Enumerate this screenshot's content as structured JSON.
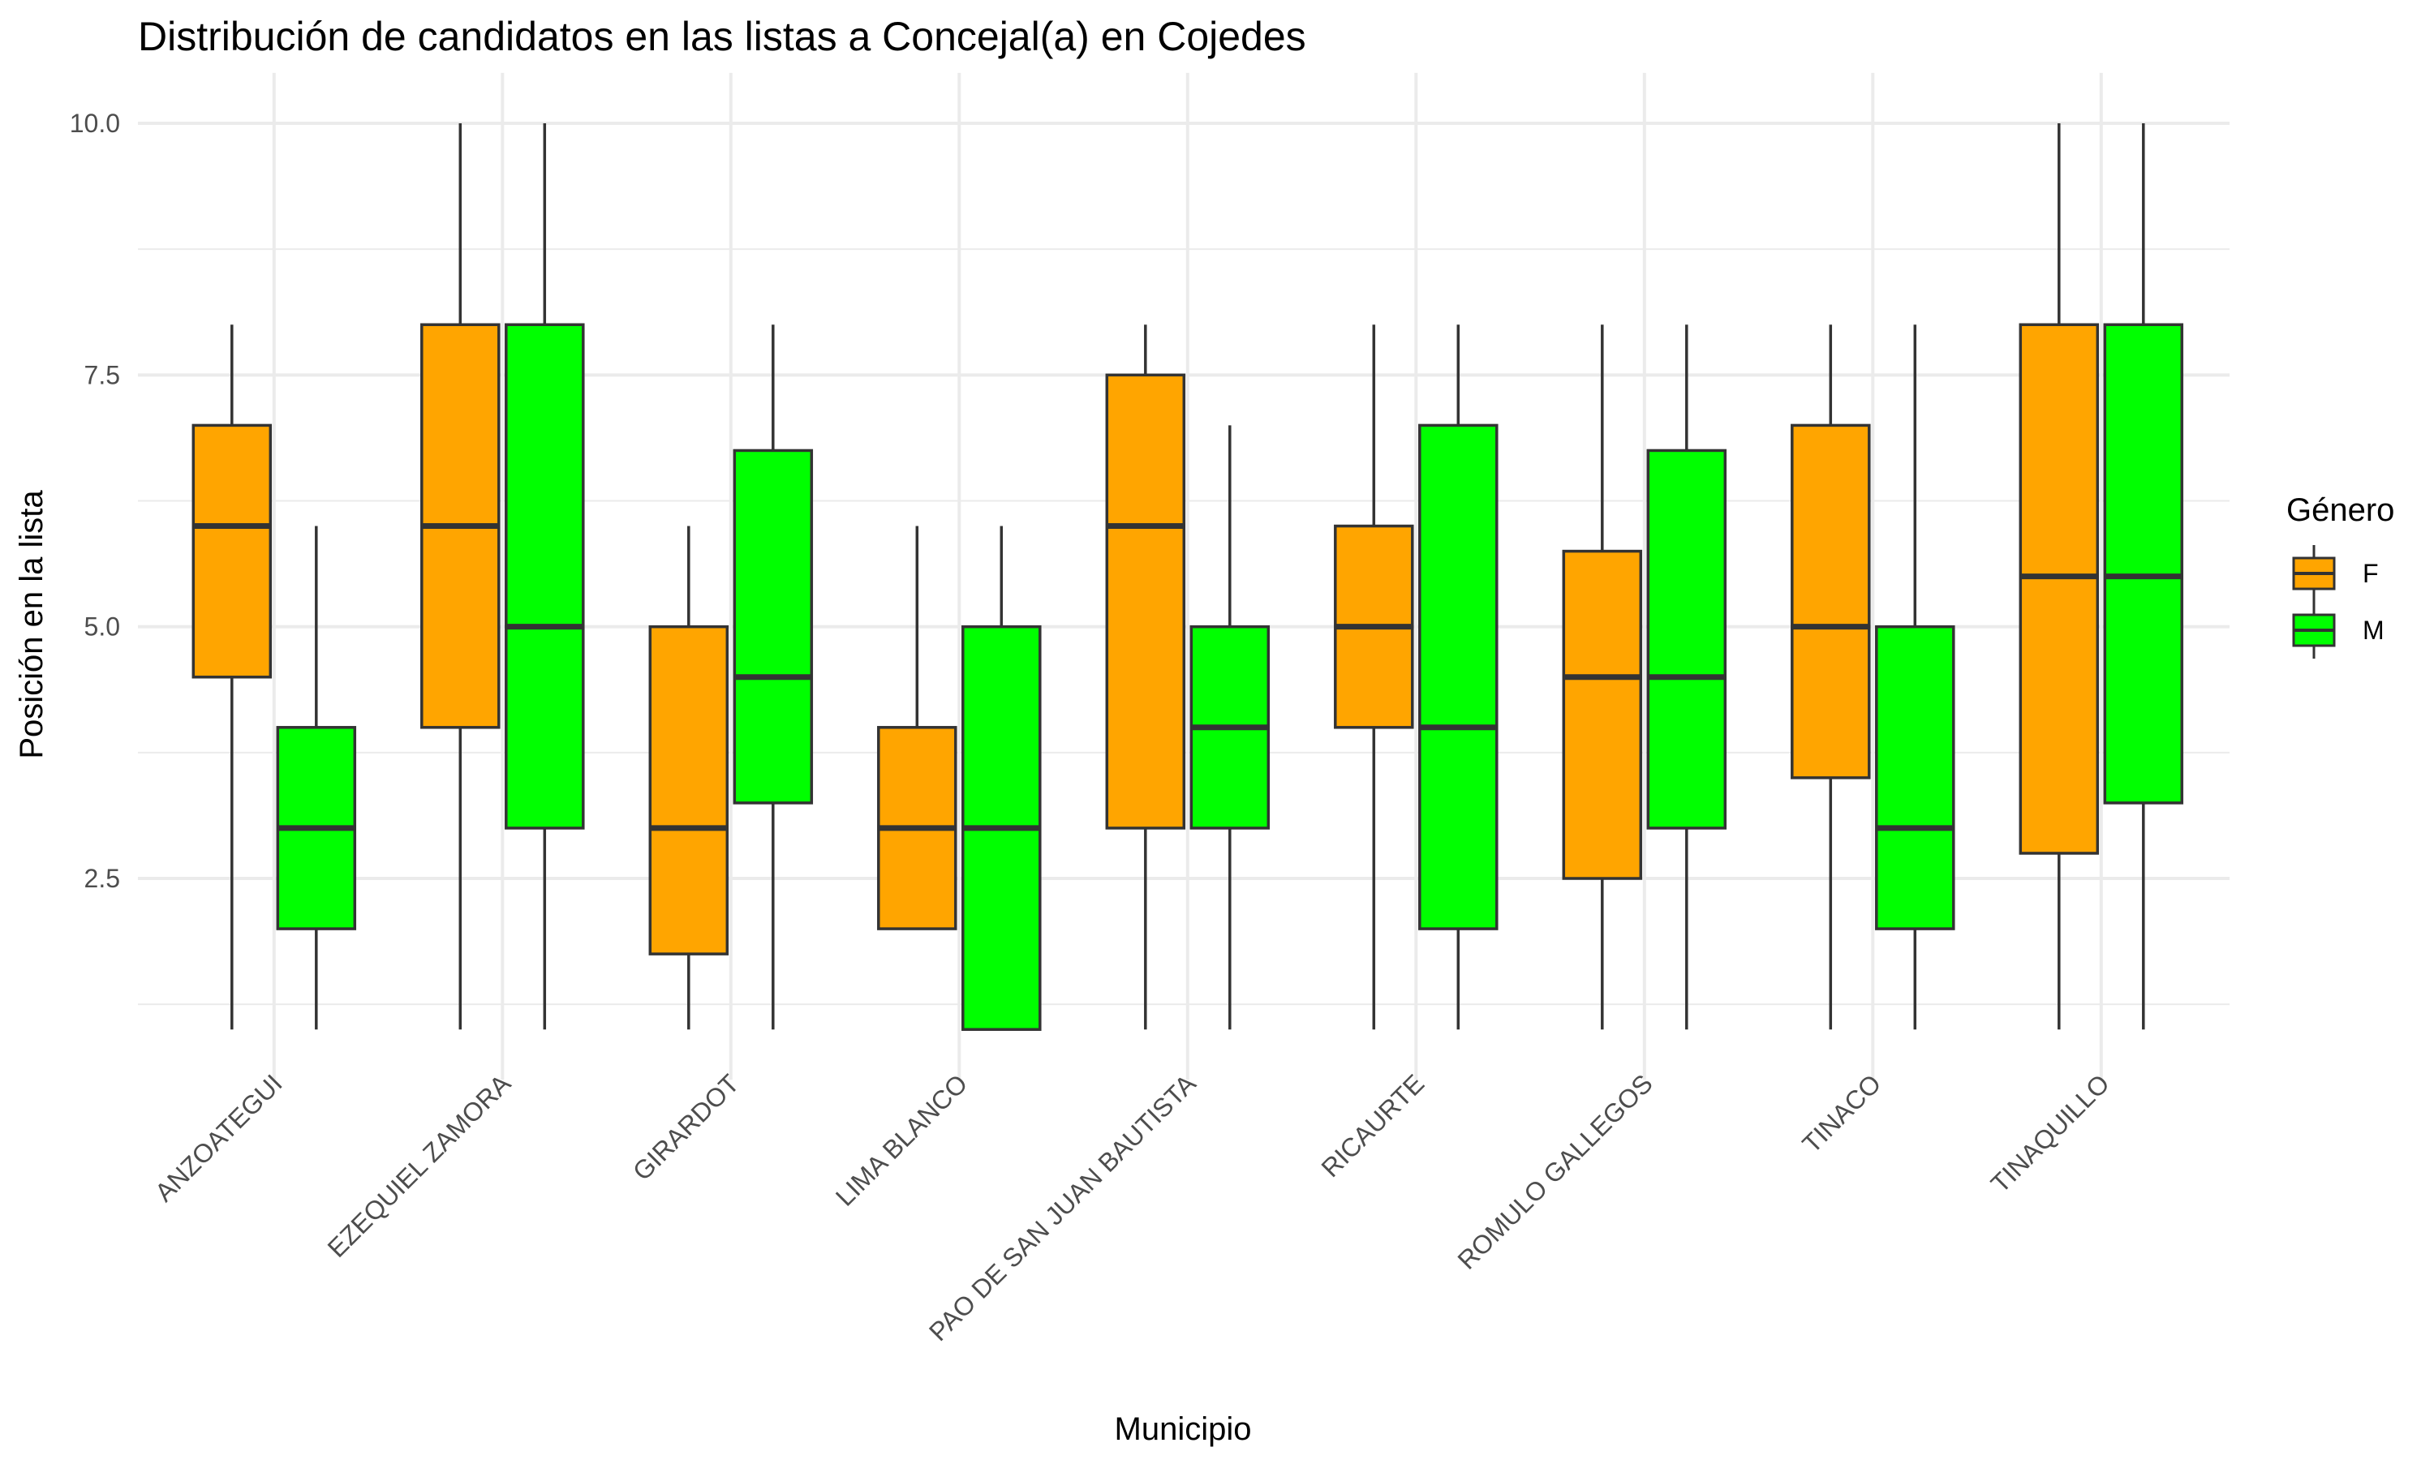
{
  "chart_data": {
    "type": "boxplot",
    "title": "Distribución de candidatos en las listas a Concejal(a) en Cojedes",
    "xlabel": "Municipio",
    "ylabel": "Posición en la lista",
    "yticks": [
      2.5,
      5.0,
      7.5,
      10.0
    ],
    "ytick_labels": [
      "2.5",
      "5.0",
      "7.5",
      "10.0"
    ],
    "ylim": [
      0.5,
      10.5
    ],
    "grid": true,
    "legend": {
      "title": "Género",
      "placement": "right",
      "entries": [
        "F",
        "M"
      ]
    },
    "categories": [
      "ANZOATEGUI",
      "EZEQUIEL ZAMORA",
      "GIRARDOT",
      "LIMA BLANCO",
      "PAO DE SAN JUAN BAUTISTA",
      "RICAURTE",
      "ROMULO GALLEGOS",
      "TINACO",
      "TINAQUILLO"
    ],
    "series": [
      {
        "name": "F",
        "color": "#FFA500",
        "boxes": [
          {
            "min": 1,
            "q1": 4.5,
            "median": 6,
            "q3": 7,
            "max": 8
          },
          {
            "min": 1,
            "q1": 4,
            "median": 6,
            "q3": 8,
            "max": 10
          },
          {
            "min": 1,
            "q1": 1.75,
            "median": 3,
            "q3": 5,
            "max": 6
          },
          {
            "min": 2,
            "q1": 2,
            "median": 3,
            "q3": 4,
            "max": 6
          },
          {
            "min": 1,
            "q1": 3,
            "median": 6,
            "q3": 7.5,
            "max": 8
          },
          {
            "min": 1,
            "q1": 4,
            "median": 5,
            "q3": 6,
            "max": 8
          },
          {
            "min": 1,
            "q1": 2.5,
            "median": 4.5,
            "q3": 5.75,
            "max": 8
          },
          {
            "min": 1,
            "q1": 3.5,
            "median": 5,
            "q3": 7,
            "max": 8
          },
          {
            "min": 1,
            "q1": 2.75,
            "median": 5.5,
            "q3": 8,
            "max": 10
          }
        ]
      },
      {
        "name": "M",
        "color": "#00FF00",
        "boxes": [
          {
            "min": 1,
            "q1": 2,
            "median": 3,
            "q3": 4,
            "max": 6
          },
          {
            "min": 1,
            "q1": 3,
            "median": 5,
            "q3": 8,
            "max": 10
          },
          {
            "min": 1,
            "q1": 3.25,
            "median": 4.5,
            "q3": 6.75,
            "max": 8
          },
          {
            "min": 1,
            "q1": 1,
            "median": 3,
            "q3": 5,
            "max": 6
          },
          {
            "min": 1,
            "q1": 3,
            "median": 4,
            "q3": 5,
            "max": 7
          },
          {
            "min": 1,
            "q1": 2,
            "median": 4,
            "q3": 7,
            "max": 8
          },
          {
            "min": 1,
            "q1": 3,
            "median": 4.5,
            "q3": 6.75,
            "max": 8
          },
          {
            "min": 1,
            "q1": 2,
            "median": 3,
            "q3": 5,
            "max": 8
          },
          {
            "min": 1,
            "q1": 3.25,
            "median": 5.5,
            "q3": 8,
            "max": 10
          }
        ]
      }
    ]
  }
}
